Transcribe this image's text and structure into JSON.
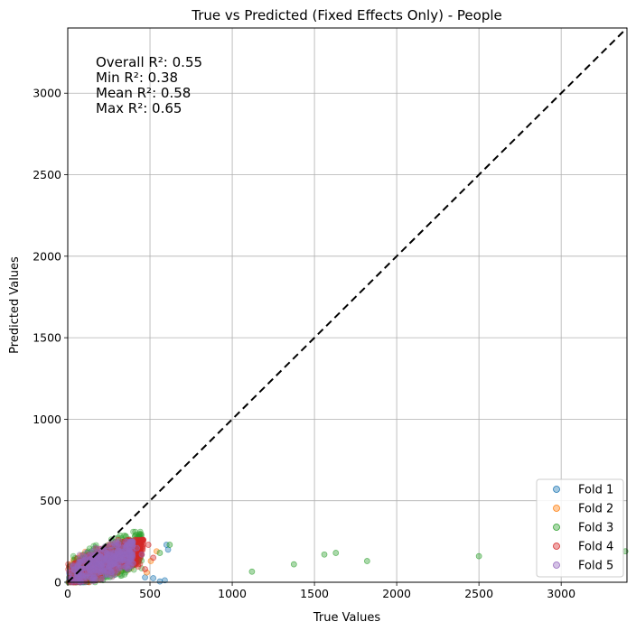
{
  "chart_data": {
    "type": "scatter",
    "title": "True vs Predicted (Fixed Effects Only) - People",
    "xlabel": "True Values",
    "ylabel": "Predicted Values",
    "xlim": [
      0,
      3400
    ],
    "ylim": [
      0,
      3400
    ],
    "xticks": [
      0,
      500,
      1000,
      1500,
      2000,
      2500,
      3000
    ],
    "yticks": [
      0,
      500,
      1000,
      1500,
      2000,
      2500,
      3000
    ],
    "grid": true,
    "legend_position": "lower-right",
    "reference_line": {
      "style": "dashed",
      "color": "#000000",
      "from": [
        0,
        0
      ],
      "to": [
        3400,
        3400
      ]
    },
    "annotations": [
      "Overall R²: 0.55",
      "Min R²: 0.38",
      "Mean R²: 0.58",
      "Max R²: 0.65"
    ],
    "series": [
      {
        "name": "Fold 1",
        "color": "#1f77b4",
        "cluster": {
          "x": [
            0,
            420
          ],
          "y": [
            0,
            230
          ]
        },
        "points": [
          [
            520,
            25
          ],
          [
            560,
            5
          ],
          [
            600,
            230
          ],
          [
            610,
            200
          ],
          [
            590,
            12
          ],
          [
            470,
            30
          ]
        ]
      },
      {
        "name": "Fold 2",
        "color": "#ff7f0e",
        "cluster": {
          "x": [
            0,
            430
          ],
          "y": [
            0,
            250
          ]
        },
        "points": [
          [
            480,
            60
          ],
          [
            540,
            190
          ],
          [
            505,
            130
          ]
        ]
      },
      {
        "name": "Fold 3",
        "color": "#2ca02c",
        "cluster": {
          "x": [
            0,
            450
          ],
          "y": [
            0,
            310
          ]
        },
        "points": [
          [
            1120,
            65
          ],
          [
            1375,
            110
          ],
          [
            1560,
            170
          ],
          [
            1630,
            180
          ],
          [
            1820,
            130
          ],
          [
            2500,
            160
          ],
          [
            3390,
            190
          ],
          [
            560,
            180
          ],
          [
            620,
            230
          ]
        ]
      },
      {
        "name": "Fold 4",
        "color": "#d62728",
        "cluster": {
          "x": [
            0,
            460
          ],
          "y": [
            0,
            260
          ]
        },
        "points": [
          [
            490,
            230
          ],
          [
            520,
            150
          ],
          [
            470,
            80
          ]
        ]
      },
      {
        "name": "Fold 5",
        "color": "#9467bd",
        "cluster": {
          "x": [
            0,
            400
          ],
          "y": [
            0,
            250
          ]
        },
        "points": [
          [
            420,
            210
          ],
          [
            450,
            170
          ]
        ]
      }
    ]
  }
}
